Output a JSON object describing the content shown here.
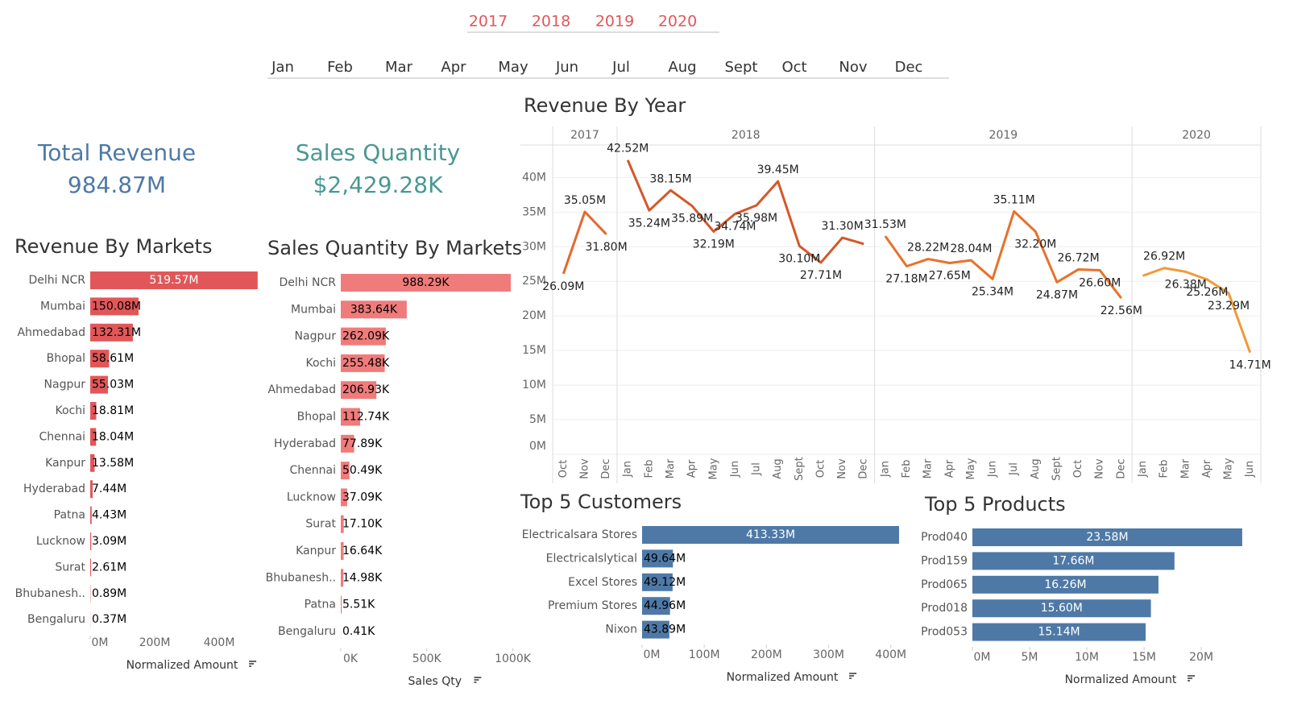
{
  "filters": {
    "years": [
      "2017",
      "2018",
      "2019",
      "2020"
    ],
    "months": [
      "Jan",
      "Feb",
      "Mar",
      "Apr",
      "May",
      "Jun",
      "Jul",
      "Aug",
      "Sept",
      "Oct",
      "Nov",
      "Dec"
    ]
  },
  "kpis": [
    {
      "title": "Total Revenue",
      "value": "984.87M",
      "color": "#4e79a7"
    },
    {
      "title": "Sales Quantity",
      "value": "$2,429.28K",
      "color": "#499894"
    }
  ],
  "chart_data": [
    {
      "type": "hbar",
      "title": "Revenue By Markets",
      "categories": [
        "Delhi NCR",
        "Mumbai",
        "Ahmedabad",
        "Bhopal",
        "Nagpur",
        "Kochi",
        "Chennai",
        "Kanpur",
        "Hyderabad",
        "Patna",
        "Lucknow",
        "Surat",
        "Bhubanesh..",
        "Bengaluru"
      ],
      "values": [
        519.57,
        150.08,
        132.31,
        58.61,
        55.03,
        18.81,
        18.04,
        13.58,
        7.44,
        4.43,
        3.09,
        2.61,
        0.89,
        0.37
      ],
      "value_labels": [
        "519.57M",
        "150.08M",
        "132.31M",
        "58.61M",
        "55.03M",
        "18.81M",
        "18.04M",
        "13.58M",
        "7.44M",
        "4.43M",
        "3.09M",
        "2.61M",
        "0.89M",
        "0.37M"
      ],
      "color": "#e15759",
      "xlim": [
        0,
        520
      ],
      "xticks": [
        {
          "value": 0,
          "label": "0M"
        },
        {
          "value": 200,
          "label": "200M"
        },
        {
          "value": 400,
          "label": "400M"
        }
      ],
      "xlabel": "Normalized Amount"
    },
    {
      "type": "hbar",
      "title": "Sales Quantity By Markets",
      "categories": [
        "Delhi NCR",
        "Mumbai",
        "Nagpur",
        "Kochi",
        "Ahmedabad",
        "Bhopal",
        "Hyderabad",
        "Chennai",
        "Lucknow",
        "Surat",
        "Kanpur",
        "Bhubanesh..",
        "Patna",
        "Bengaluru"
      ],
      "values": [
        988.29,
        383.64,
        262.09,
        255.48,
        206.93,
        112.74,
        77.89,
        50.49,
        37.09,
        17.1,
        16.64,
        14.98,
        5.51,
        0.41
      ],
      "value_labels": [
        "988.29K",
        "383.64K",
        "262.09K",
        "255.48K",
        "206.93K",
        "112.74K",
        "77.89K",
        "50.49K",
        "37.09K",
        "17.10K",
        "16.64K",
        "14.98K",
        "5.51K",
        "0.41K"
      ],
      "color": "#f07b7b",
      "xlim": [
        0,
        1000
      ],
      "xticks": [
        {
          "value": 0,
          "label": "0K"
        },
        {
          "value": 500,
          "label": "500K"
        },
        {
          "value": 1000,
          "label": "1000K"
        }
      ],
      "xlabel": "Sales Qty"
    },
    {
      "type": "line",
      "title": "Revenue By Year",
      "series": [
        {
          "name": "2017",
          "color": "#e6672c",
          "categories": [
            "Oct",
            "Nov",
            "Dec"
          ],
          "values": [
            26.09,
            35.05,
            31.8
          ],
          "value_labels": [
            "26.09M",
            "35.05M",
            "31.80M"
          ]
        },
        {
          "name": "2018",
          "color": "#d4572a",
          "categories": [
            "Jan",
            "Feb",
            "Mar",
            "Apr",
            "May",
            "Jun",
            "Jul",
            "Aug",
            "Sept",
            "Oct",
            "Nov",
            "Dec"
          ],
          "values": [
            42.52,
            35.24,
            38.15,
            35.89,
            32.19,
            34.74,
            35.98,
            39.45,
            30.1,
            27.71,
            31.3,
            30.4
          ],
          "value_labels": [
            "42.52M",
            "35.24M",
            "38.15M",
            "35.89M",
            "32.19M",
            "34.74M",
            "35.98M",
            "39.45M",
            "30.10M",
            "27.71M",
            "31.30M",
            null
          ]
        },
        {
          "name": "2019",
          "color": "#e8712b",
          "categories": [
            "Jan",
            "Feb",
            "Mar",
            "Apr",
            "May",
            "Jun",
            "Jul",
            "Aug",
            "Sept",
            "Oct",
            "Nov",
            "Dec"
          ],
          "values": [
            31.53,
            27.18,
            28.22,
            27.65,
            28.04,
            25.34,
            35.11,
            32.2,
            24.87,
            26.72,
            26.6,
            22.56
          ],
          "value_labels": [
            "31.53M",
            "27.18M",
            "28.22M",
            "27.65M",
            "28.04M",
            "25.34M",
            "35.11M",
            "32.20M",
            "24.87M",
            "26.72M",
            "26.60M",
            "22.56M"
          ]
        },
        {
          "name": "2020",
          "color": "#f0993a",
          "categories": [
            "Jan",
            "Feb",
            "Mar",
            "Apr",
            "May",
            "Jun"
          ],
          "values": [
            25.8,
            26.92,
            26.38,
            25.26,
            23.29,
            14.71
          ],
          "value_labels": [
            null,
            "26.92M",
            "26.38M",
            "25.26M",
            "23.29M",
            "14.71M"
          ]
        }
      ],
      "ylim": [
        0,
        44.7
      ],
      "yticks": [
        {
          "value": 0,
          "label": "0M"
        },
        {
          "value": 5,
          "label": "5M"
        },
        {
          "value": 10,
          "label": "10M"
        },
        {
          "value": 15,
          "label": "15M"
        },
        {
          "value": 20,
          "label": "20M"
        },
        {
          "value": 25,
          "label": "25M"
        },
        {
          "value": 30,
          "label": "30M"
        },
        {
          "value": 35,
          "label": "35M"
        },
        {
          "value": 40,
          "label": "40M"
        }
      ],
      "grid": true
    },
    {
      "type": "hbar",
      "title": "Top 5 Customers",
      "categories": [
        "Electricalsara Stores",
        "Electricalslytical",
        "Excel Stores",
        "Premium Stores",
        "Nixon"
      ],
      "values": [
        413.33,
        49.64,
        49.12,
        44.96,
        43.89
      ],
      "value_labels": [
        "413.33M",
        "49.64M",
        "49.12M",
        "44.96M",
        "43.89M"
      ],
      "color": "#4e79a7",
      "xlim": [
        0,
        425
      ],
      "xticks": [
        {
          "value": 0,
          "label": "0M"
        },
        {
          "value": 100,
          "label": "100M"
        },
        {
          "value": 200,
          "label": "200M"
        },
        {
          "value": 300,
          "label": "300M"
        },
        {
          "value": 400,
          "label": "400M"
        }
      ],
      "xlabel": "Normalized Amount"
    },
    {
      "type": "hbar",
      "title": "Top 5 Products",
      "categories": [
        "Prod040",
        "Prod159",
        "Prod065",
        "Prod018",
        "Prod053"
      ],
      "values": [
        23.58,
        17.66,
        16.26,
        15.6,
        15.14
      ],
      "value_labels": [
        "23.58M",
        "17.66M",
        "16.26M",
        "15.60M",
        "15.14M"
      ],
      "color": "#4e79a7",
      "xlim": [
        0,
        24.5
      ],
      "xticks": [
        {
          "value": 0,
          "label": "0M"
        },
        {
          "value": 5,
          "label": "5M"
        },
        {
          "value": 10,
          "label": "10M"
        },
        {
          "value": 15,
          "label": "15M"
        },
        {
          "value": 20,
          "label": "20M"
        }
      ],
      "xlabel": "Normalized Amount"
    }
  ]
}
